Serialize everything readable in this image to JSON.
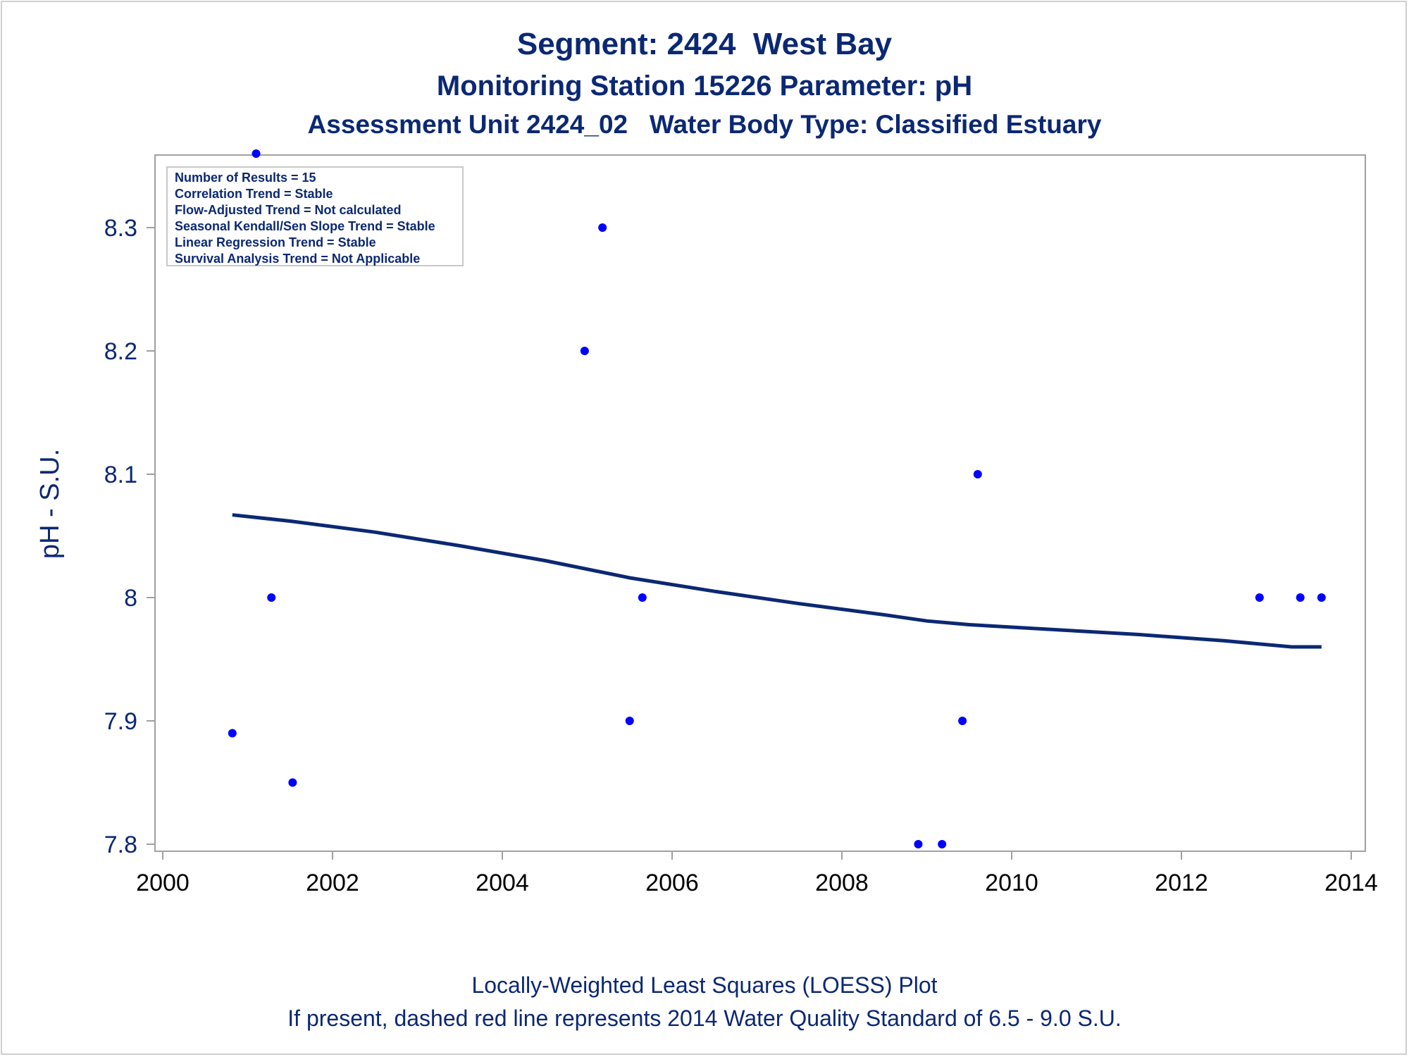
{
  "title": "Segment: 2424  West Bay",
  "subtitle": "Monitoring Station 15226 Parameter: pH",
  "subtitle2": "Assessment Unit 2424_02   Water Body Type: Classified Estuary",
  "footnote1": "Locally-Weighted Least Squares (LOESS) Plot",
  "footnote2": "If present, dashed red line represents 2014 Water Quality Standard of 6.5 - 9.0 S.U.",
  "stats_box": [
    "Number of Results = 15",
    "Correlation Trend = Stable",
    "Flow-Adjusted Trend = Not calculated",
    "Seasonal Kendall/Sen Slope Trend = Stable",
    "Linear Regression Trend = Stable",
    "Survival Analysis Trend = Not Applicable"
  ],
  "colors": {
    "text": "#0b2873",
    "points": "#0000ff",
    "loess": "#0b2873",
    "axis": "#a0a0a0"
  },
  "chart_data": {
    "type": "scatter",
    "ylabel": "pH - S.U.",
    "xlabel": "",
    "xlim": [
      2000,
      2014
    ],
    "ylim": [
      7.8,
      8.37
    ],
    "xticks": [
      "2000",
      "2002",
      "2004",
      "2006",
      "2008",
      "2010",
      "2012",
      "2014"
    ],
    "yticks": [
      "7.8",
      "7.9",
      "8",
      "8.1",
      "8.2",
      "8.3"
    ],
    "series": [
      {
        "kind": "points",
        "x": [
          2000.82,
          2001.1,
          2001.28,
          2001.53,
          2004.97,
          2005.18,
          2005.5,
          2005.65,
          2008.9,
          2009.18,
          2009.42,
          2009.6,
          2012.92,
          2013.4,
          2013.65
        ],
        "y": [
          7.89,
          8.36,
          8.0,
          7.85,
          8.2,
          8.3,
          7.9,
          8.0,
          7.8,
          7.8,
          7.9,
          8.1,
          8.0,
          8.0,
          8.0
        ]
      },
      {
        "kind": "loess",
        "x": [
          2000.82,
          2001.5,
          2002.5,
          2003.5,
          2004.5,
          2005.5,
          2006.5,
          2007.5,
          2008.5,
          2009.0,
          2009.5,
          2010.5,
          2011.5,
          2012.5,
          2013.3,
          2013.65
        ],
        "y": [
          8.067,
          8.062,
          8.053,
          8.042,
          8.03,
          8.016,
          8.005,
          7.995,
          7.986,
          7.981,
          7.978,
          7.974,
          7.97,
          7.965,
          7.96,
          7.96
        ]
      }
    ]
  }
}
